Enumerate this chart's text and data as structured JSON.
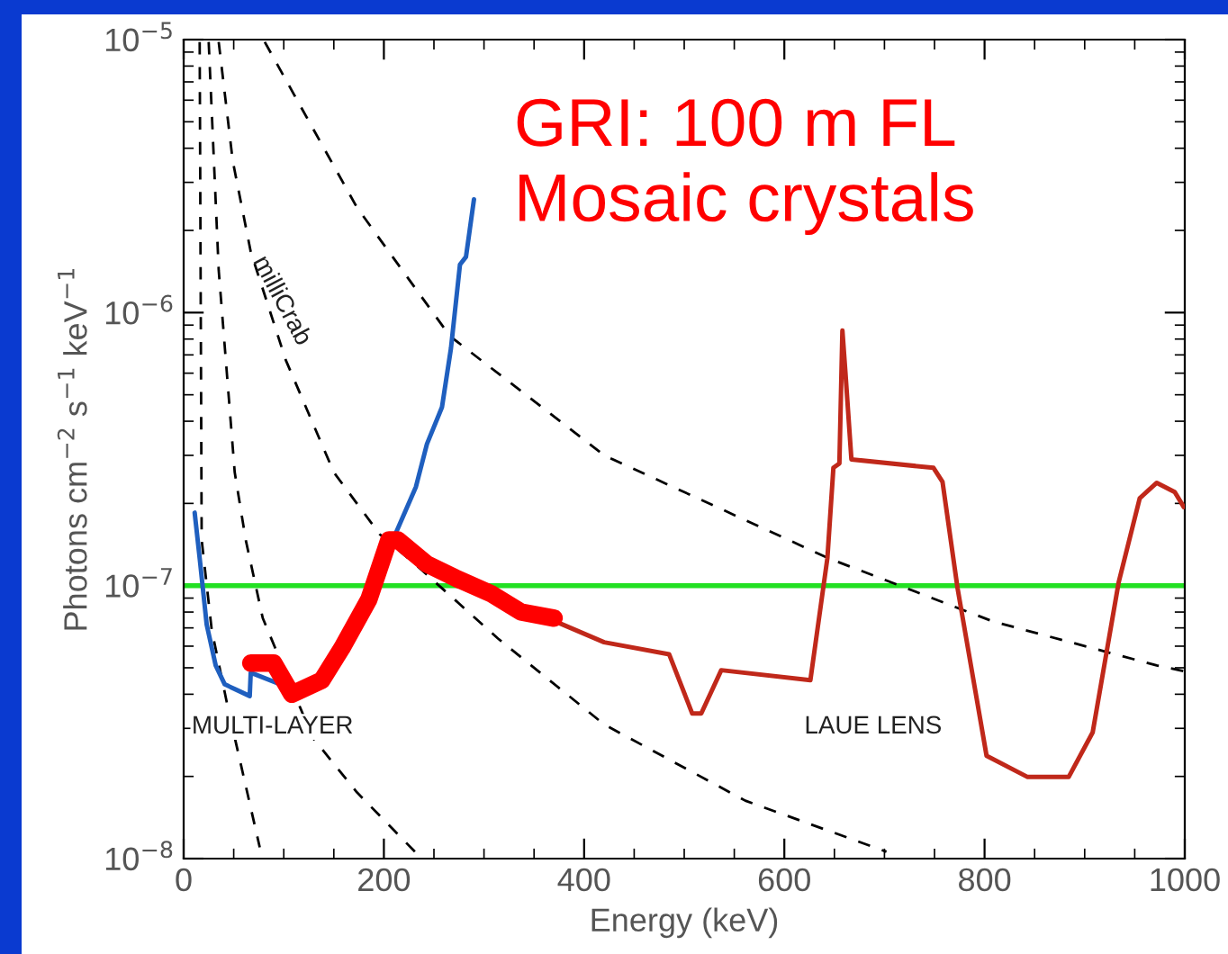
{
  "chart_data": {
    "type": "line",
    "xlabel": "Energy (keV)",
    "ylabel": "Photons cm$^{−2}$ s$^{−1}$ keV$^{−1}$",
    "log": "y",
    "xlim": [
      0,
      1000
    ],
    "ylim": [
      1e-08,
      1e-05
    ],
    "xticks": [
      0,
      200,
      400,
      600,
      800,
      1000
    ],
    "yticks": [
      {
        "value": 1e-08,
        "label": "10$^{−8}$"
      },
      {
        "value": 1e-07,
        "label": "10$^{−7}$"
      },
      {
        "value": 1e-06,
        "label": "10$^{−6}$"
      },
      {
        "value": 1e-05,
        "label": "10$^{−5}$"
      }
    ],
    "grid": false,
    "legend": false,
    "series": [
      {
        "color": "#000000",
        "line_style": "dashed",
        "x": [
          16,
          18,
          28,
          44,
          76
        ],
        "values": [
          9.8e-06,
          1.47e-07,
          6.9e-08,
          3.6e-08,
          1.1e-08
        ]
      },
      {
        "color": "#000000",
        "line_style": "dashed",
        "x": [
          25,
          35,
          51,
          62,
          79,
          129,
          173,
          231
        ],
        "values": [
          9.8e-06,
          1.43e-06,
          2.6e-07,
          1.47e-07,
          7.6e-08,
          2.77e-08,
          1.75e-08,
          1.06e-08
        ]
      },
      {
        "color": "#000000",
        "line_style": "dashed",
        "x": [
          35,
          49,
          67,
          102,
          150,
          196,
          231,
          314,
          420,
          561,
          702
        ],
        "values": [
          9.8e-06,
          3.6e-06,
          1.67e-06,
          6.7e-07,
          2.6e-07,
          1.54e-07,
          1.2e-07,
          6.4e-08,
          3.1e-08,
          1.63e-08,
          1.06e-08
        ]
      },
      {
        "color": "#000000",
        "line_style": "dashed",
        "x": [
          81,
          173,
          266,
          420,
          644,
          808,
          972,
          1000
        ],
        "values": [
          9.8e-06,
          2.43e-06,
          8.2e-07,
          3e-07,
          1.26e-07,
          7.4e-08,
          5.1e-08,
          4.85e-08
        ]
      },
      {
        "color": "#1f5fbf",
        "line_style": "solid",
        "x": [
          11,
          16,
          23,
          32,
          41,
          66,
          67,
          100,
          149,
          180,
          210,
          232,
          243,
          258,
          267,
          276,
          282,
          290
        ],
        "values": [
          1.85e-07,
          1.26e-07,
          7.2e-08,
          5.1e-08,
          4.35e-08,
          3.94e-08,
          4.8e-08,
          4.3e-08,
          null,
          null,
          1.5e-07,
          2.3e-07,
          3.3e-07,
          4.5e-07,
          7.4e-07,
          1.5e-06,
          1.6e-06,
          2.6e-06
        ]
      },
      {
        "color": "#c0281a",
        "line_style": "solid",
        "x": [
          360,
          420,
          485,
          508,
          517,
          537,
          626,
          643,
          649,
          655,
          658,
          661,
          667,
          749,
          758,
          773,
          802,
          843,
          884,
          908,
          934,
          955,
          972,
          990,
          999
        ],
        "values": [
          7.7e-08,
          6.2e-08,
          5.6e-08,
          3.4e-08,
          3.4e-08,
          4.9e-08,
          4.5e-08,
          1.26e-07,
          2.7e-07,
          2.8e-07,
          8.6e-07,
          6.05e-07,
          2.9e-07,
          2.7e-07,
          2.4e-07,
          9.8e-08,
          2.38e-08,
          1.99e-08,
          1.99e-08,
          2.9e-08,
          1.03e-07,
          2.09e-07,
          2.38e-07,
          2.2e-07,
          1.94e-07
        ]
      },
      {
        "color": "#ff0000",
        "line_style": "solid",
        "x": [
          67,
          90,
          108,
          138,
          158,
          185,
          205,
          214,
          243,
          273,
          308,
          337,
          370
        ],
        "values": [
          5.2e-08,
          5.2e-08,
          4e-08,
          4.5e-08,
          5.9e-08,
          8.9e-08,
          1.47e-07,
          1.47e-07,
          1.2e-07,
          1.06e-07,
          9.3e-08,
          8e-08,
          7.6e-08
        ]
      }
    ],
    "ref_lines": [
      {
        "axis": "y",
        "value": 1e-07,
        "color": "#22e022"
      }
    ],
    "annotations": [
      "milliCrab",
      "MULTI-LAYER",
      "LAUE LENS",
      "GRI: 100 m FL\nMosaic crystals"
    ]
  }
}
